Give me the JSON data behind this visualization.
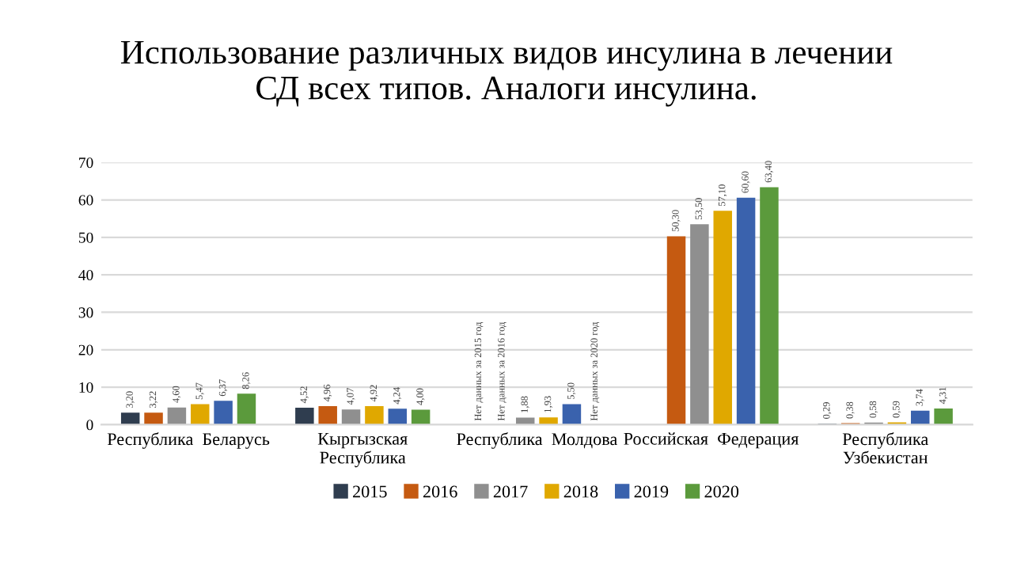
{
  "chart_data": {
    "type": "bar",
    "title": "Использование различных видов инсулина в лечении\nСД всех типов. Аналоги инсулина.",
    "categories": [
      "Республика  Беларусь",
      "Кыргызская\nРеспублика",
      "Республика  Молдова",
      "Российская  Федерация",
      "Республика\nУзбекистан"
    ],
    "series": [
      {
        "name": "2015",
        "color": "#2f3d4f",
        "values": [
          3.2,
          4.52,
          null,
          null,
          0.29
        ],
        "value_labels": [
          "3,20",
          "4,52",
          null,
          null,
          "0,29"
        ]
      },
      {
        "name": "2016",
        "color": "#c55a11",
        "values": [
          3.22,
          4.96,
          null,
          50.3,
          0.38
        ],
        "value_labels": [
          "3,22",
          "4,96",
          null,
          "50,30",
          "0,38"
        ]
      },
      {
        "name": "2017",
        "color": "#8f8f8f",
        "values": [
          4.6,
          4.07,
          1.88,
          53.5,
          0.58
        ],
        "value_labels": [
          "4,60",
          "4,07",
          "1,88",
          "53,50",
          "0,58"
        ]
      },
      {
        "name": "2018",
        "color": "#e0a800",
        "values": [
          5.47,
          4.92,
          1.93,
          57.1,
          0.59
        ],
        "value_labels": [
          "5,47",
          "4,92",
          "1,93",
          "57,10",
          "0,59"
        ]
      },
      {
        "name": "2019",
        "color": "#3a62ad",
        "values": [
          6.37,
          4.24,
          5.5,
          60.6,
          3.74
        ],
        "value_labels": [
          "6,37",
          "4,24",
          "5,50",
          "60,60",
          "3,74"
        ]
      },
      {
        "name": "2020",
        "color": "#5b9a3c",
        "values": [
          8.26,
          4.0,
          null,
          63.4,
          4.31
        ],
        "value_labels": [
          "8,26",
          "4,00",
          null,
          "63,40",
          "4,31"
        ]
      }
    ],
    "annotations": [
      "Нет данных за 2015 год",
      "Нет данных за 2016 год",
      "Нет данных за 2020 год"
    ],
    "ylim": [
      0,
      70
    ],
    "yticks": [
      0,
      10,
      20,
      30,
      40,
      50,
      60,
      70
    ],
    "grid": "y",
    "legend": "bottom"
  }
}
